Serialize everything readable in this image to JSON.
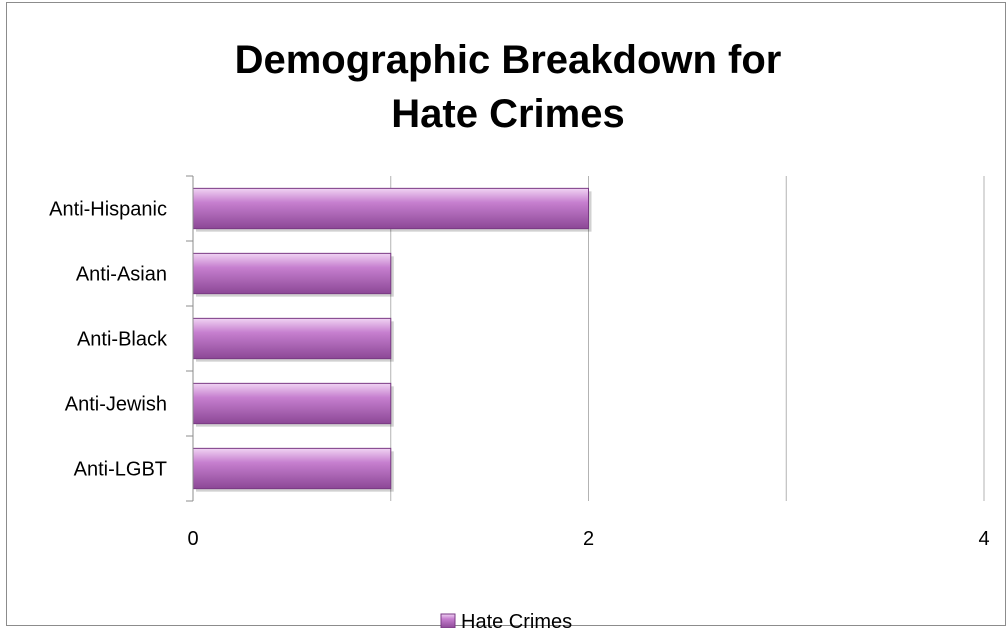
{
  "chart_data": {
    "type": "bar",
    "orientation": "horizontal",
    "title": "Demographic Breakdown for Hate Crimes",
    "title_lines": [
      "Demographic Breakdown for",
      "Hate Crimes"
    ],
    "categories": [
      "Anti-Hispanic",
      "Anti-Asian",
      "Anti-Black",
      "Anti-Jewish",
      "Anti-LGBT"
    ],
    "series": [
      {
        "name": "Hate Crimes",
        "values": [
          2,
          1,
          1,
          1,
          1
        ],
        "color": "#b65fc0"
      }
    ],
    "xlim": [
      0,
      4
    ],
    "x_ticks": [
      0,
      2,
      4
    ],
    "gridlines": [
      1,
      2,
      3,
      4
    ],
    "grid": true,
    "legend": {
      "position": "bottom",
      "entries": [
        "Hate Crimes"
      ]
    },
    "colors": {
      "bar_light": "#e6b8ec",
      "bar_mid": "#b65fc0",
      "bar_dark": "#7a3a84",
      "grid": "#b3b3b3",
      "axis": "#8c8c8c"
    }
  }
}
